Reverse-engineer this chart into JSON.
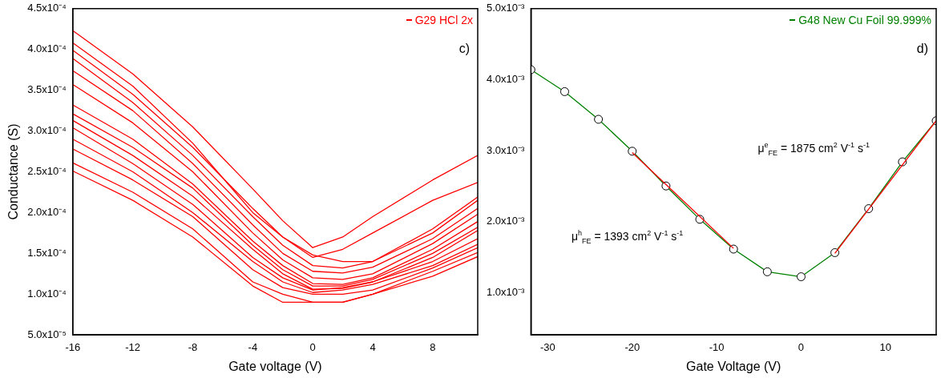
{
  "chart_data": [
    {
      "type": "line",
      "xlabel": "Gate voltage (V)",
      "ylabel": "Conductance (S)",
      "legend": "top right",
      "annotations": [
        "c)"
      ],
      "x": [
        -16,
        -12,
        -8,
        -4,
        -2,
        0,
        2,
        4,
        8,
        11
      ],
      "xlim": [
        -16,
        11
      ],
      "xticks": [
        -16,
        -12,
        -8,
        -4,
        0,
        4,
        8
      ],
      "ylim": [
        5e-05,
        0.00045
      ],
      "yticks": [
        {
          "value": 5e-05,
          "label": "5.0x10⁻⁵"
        },
        {
          "value": 0.0001,
          "label": "1.0x10⁻⁴"
        },
        {
          "value": 0.00015,
          "label": "1.5x10⁻⁴"
        },
        {
          "value": 0.0002,
          "label": "2.0x10⁻⁴"
        },
        {
          "value": 0.00025,
          "label": "2.5x10⁻⁴"
        },
        {
          "value": 0.0003,
          "label": "3.0x10⁻⁴"
        },
        {
          "value": 0.00035,
          "label": "3.5x10⁻⁴"
        },
        {
          "value": 0.0004,
          "label": "4.0x10⁻⁴"
        },
        {
          "value": 0.00045,
          "label": "4.5x10⁻⁴"
        }
      ],
      "marker": "none",
      "series": [
        {
          "name": "G29 HCl 2x",
          "color": "#ff0000",
          "values": [
            0.000423,
            0.00037,
            0.000305,
            0.000229,
            0.00019,
            0.000157,
            0.00017,
            0.000195,
            0.00024,
            0.00027
          ]
        },
        {
          "color": "#ff0000",
          "values": [
            0.000408,
            0.000355,
            0.000285,
            0.0002,
            0.00017,
            0.000145,
            0.000155,
            0.000175,
            0.000215,
            0.000237
          ]
        },
        {
          "color": "#ff0000",
          "values": [
            0.000399,
            0.000345,
            0.00028,
            0.000205,
            0.00017,
            0.000148,
            0.00014,
            0.00014,
            0.00018,
            0.000219
          ]
        },
        {
          "color": "#ff0000",
          "values": [
            0.000389,
            0.000335,
            0.00027,
            0.000195,
            0.00016,
            0.000135,
            0.000132,
            0.00014,
            0.000175,
            0.000215
          ]
        },
        {
          "color": "#ff0000",
          "values": [
            0.000374,
            0.000325,
            0.00026,
            0.000185,
            0.00015,
            0.000128,
            0.000126,
            0.000133,
            0.000168,
            0.000205
          ]
        },
        {
          "color": "#ff0000",
          "values": [
            0.000357,
            0.00031,
            0.00025,
            0.000175,
            0.000142,
            0.00012,
            0.000118,
            0.000125,
            0.000162,
            0.000198
          ]
        },
        {
          "color": "#ff0000",
          "values": [
            0.000332,
            0.00029,
            0.000235,
            0.000165,
            0.000135,
            0.000113,
            0.000112,
            0.00012,
            0.000155,
            0.000189
          ]
        },
        {
          "color": "#ff0000",
          "values": [
            0.000321,
            0.00028,
            0.00023,
            0.00016,
            0.00013,
            0.00011,
            0.00011,
            0.000118,
            0.00015,
            0.000182
          ]
        },
        {
          "color": "#ff0000",
          "values": [
            0.000313,
            0.00027,
            0.00022,
            0.000155,
            0.000125,
            0.000106,
            0.000107,
            0.000115,
            0.000145,
            0.000178
          ]
        },
        {
          "color": "#ff0000",
          "values": [
            0.000304,
            0.00026,
            0.00021,
            0.000145,
            0.00012,
            0.000105,
            0.000108,
            0.000115,
            0.00014,
            0.000168
          ]
        },
        {
          "color": "#ff0000",
          "values": [
            0.00029,
            0.00025,
            0.0002,
            0.00014,
            0.000115,
            0.000102,
            0.000105,
            0.000112,
            0.000135,
            0.000161
          ]
        },
        {
          "color": "#ff0000",
          "values": [
            0.000278,
            0.00024,
            0.000195,
            0.00013,
            0.000108,
            0.0001,
            0.0001,
            0.000105,
            0.000132,
            0.000157
          ]
        },
        {
          "color": "#ff0000",
          "values": [
            0.000261,
            0.000225,
            0.00018,
            0.000115,
            0.0001,
            9e-05,
            9e-05,
            0.0001,
            0.000128,
            0.000151
          ]
        },
        {
          "color": "#ff0000",
          "values": [
            0.000251,
            0.000215,
            0.00017,
            0.00011,
            9e-05,
            9e-05,
            9e-05,
            0.0001,
            0.000122,
            0.000146
          ]
        }
      ]
    },
    {
      "type": "line",
      "xlabel": "Gate Voltage (V)",
      "legend": "top right",
      "annotations": [
        "d)",
        "μ$^{h}$$_{FE}$ = 1393 cm$^{2}$ V$^{-1}$ s$^{-1}$",
        "μ$^{e}$$_{FE}$ = 1875 cm$^{2}$ V$^{-1}$ s$^{-1}$"
      ],
      "xlim": [
        -32,
        16
      ],
      "xticks": [
        -30,
        -20,
        -10,
        0,
        10
      ],
      "ylim": [
        0.0004,
        0.005
      ],
      "yticks": [
        {
          "value": 0.001,
          "label": "1.0x10⁻³"
        },
        {
          "value": 0.002,
          "label": "2.0x10⁻³"
        },
        {
          "value": 0.003,
          "label": "3.0x10⁻³"
        },
        {
          "value": 0.004,
          "label": "4.0x10⁻³"
        },
        {
          "value": 0.005,
          "label": "5.0x10⁻³"
        }
      ],
      "series": [
        {
          "name": "G48 New Cu Foil 99.999%",
          "color": "#008000",
          "marker": "circle",
          "x": [
            -32,
            -28,
            -24,
            -20,
            -16,
            -12,
            -8,
            -4,
            0,
            4,
            8,
            12,
            16
          ],
          "values": [
            0.00414,
            0.00383,
            0.00344,
            0.00299,
            0.0025,
            0.00203,
            0.00161,
            0.00129,
            0.00122,
            0.00156,
            0.00218,
            0.00284,
            0.00342
          ]
        },
        {
          "color": "#ff0000",
          "marker": "none",
          "x": [
            -20,
            -8
          ],
          "values": [
            0.00297,
            0.00162
          ]
        },
        {
          "color": "#ff0000",
          "marker": "none",
          "x": [
            4,
            16
          ],
          "values": [
            0.00155,
            0.00342
          ]
        }
      ]
    }
  ]
}
